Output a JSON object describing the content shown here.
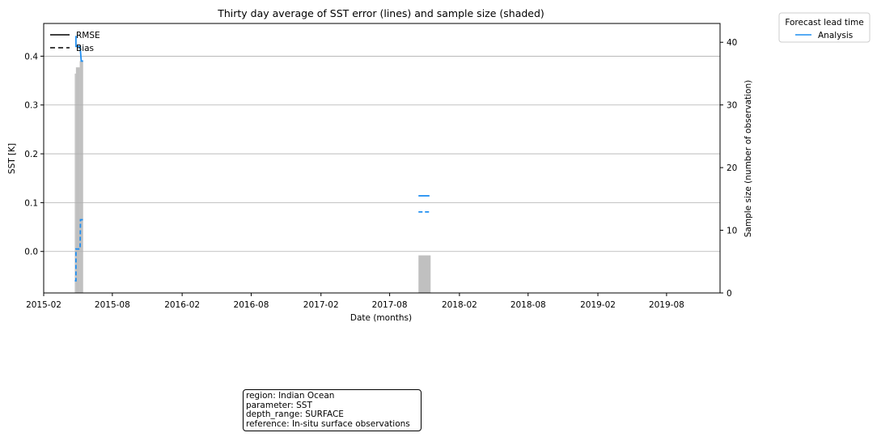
{
  "chart_data": {
    "type": "line",
    "title": "Thirty day average of SST error (lines) and sample size (shaded)",
    "xlabel": "Date (months)",
    "ylabel": "SST [K]",
    "y2label": "Sample size (number of observation)",
    "xlim": [
      "2015-02-01",
      "2019-12-20"
    ],
    "ylim": [
      -0.085,
      0.467
    ],
    "y2lim": [
      0,
      43
    ],
    "x_ticks": [
      "2015-02",
      "2015-08",
      "2016-02",
      "2016-08",
      "2017-02",
      "2017-08",
      "2018-02",
      "2018-08",
      "2019-02",
      "2019-08"
    ],
    "y_ticks": [
      0.0,
      0.1,
      0.2,
      0.3,
      0.4
    ],
    "y_tick_labels": [
      "0.0",
      "0.1",
      "0.2",
      "0.3",
      "0.4"
    ],
    "y2_ticks": [
      0,
      10,
      20,
      30,
      40
    ],
    "grid": "horizontal",
    "style_legend": {
      "placement": "top-left",
      "entries": [
        {
          "label": "RMSE",
          "dash": "solid"
        },
        {
          "label": "Bias",
          "dash": "dashed"
        }
      ]
    },
    "series_legend": {
      "title": "Forecast lead time",
      "placement": "outside-top-right",
      "entries": [
        {
          "label": "Analysis",
          "color": "#1f8ef1"
        }
      ]
    },
    "samples": {
      "color": "#c0c0c0",
      "bars": [
        {
          "start": "2015-04-24",
          "end": "2015-04-27",
          "value": 35
        },
        {
          "start": "2015-04-27",
          "end": "2015-05-07",
          "value": 36
        },
        {
          "start": "2015-05-07",
          "end": "2015-05-16",
          "value": 37
        },
        {
          "start": "2017-10-16",
          "end": "2017-11-17",
          "value": 6
        }
      ]
    },
    "series": [
      {
        "name": "Analysis",
        "color": "#1f8ef1",
        "rmse": [
          [
            "2015-04-25",
            0.44
          ],
          [
            "2015-04-27",
            0.44
          ],
          [
            "2015-04-27",
            0.42
          ],
          [
            "2015-05-08",
            0.42
          ],
          [
            "2015-05-11",
            0.39
          ],
          [
            "2015-05-16",
            0.39
          ],
          null,
          [
            "2017-10-16",
            0.114
          ],
          [
            "2017-11-14",
            0.114
          ]
        ],
        "bias": [
          [
            "2015-04-24",
            -0.06
          ],
          [
            "2015-04-27",
            -0.06
          ],
          [
            "2015-04-27",
            0.005
          ],
          [
            "2015-05-08",
            0.005
          ],
          [
            "2015-05-09",
            0.065
          ],
          [
            "2015-05-16",
            0.065
          ],
          null,
          [
            "2017-10-16",
            0.081
          ],
          [
            "2017-11-14",
            0.081
          ]
        ]
      }
    ]
  },
  "info_box": {
    "lines": [
      "region: Indian Ocean",
      "parameter: SST",
      "depth_range: SURFACE",
      "reference: In-situ surface observations"
    ]
  }
}
